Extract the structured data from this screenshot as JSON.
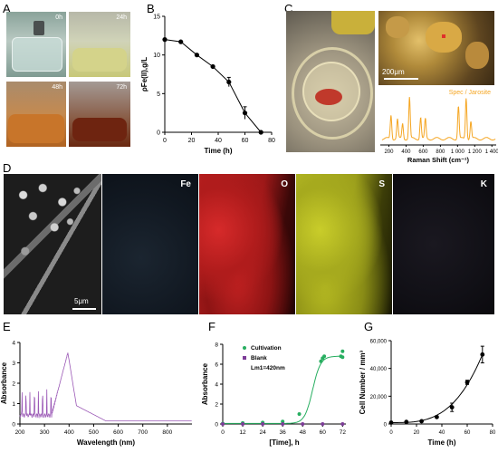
{
  "panels": {
    "A": "A",
    "B": "B",
    "C": "C",
    "D": "D",
    "E": "E",
    "F": "F",
    "G": "G"
  },
  "panelA": {
    "times": [
      "0h",
      "24h",
      "48h",
      "72h"
    ]
  },
  "panelC": {
    "scale_bar": "200μm",
    "spec_label": "Spec / Jarosite"
  },
  "panelD": {
    "channels": [
      "Fe",
      "O",
      "S",
      "K"
    ],
    "scale_bar": "5μm"
  },
  "chart_data": [
    {
      "panel": "B",
      "type": "line",
      "xlabel": "Time (h)",
      "ylabel": "ρFe(II),g/L",
      "xlim": [
        0,
        80
      ],
      "ylim": [
        0,
        15
      ],
      "xticks": [
        "0",
        "20",
        "40",
        "60",
        "80"
      ],
      "yticks": [
        "0",
        "5",
        "10",
        "15"
      ],
      "x": [
        0,
        12,
        24,
        36,
        48,
        60,
        72
      ],
      "y": [
        12.0,
        11.7,
        10.0,
        8.5,
        6.5,
        2.5,
        0.0
      ],
      "error": [
        0,
        0,
        0,
        0,
        0.6,
        0.8,
        0
      ],
      "color": "#000000"
    },
    {
      "panel": "C",
      "type": "line",
      "xlabel": "Raman Shift (cm⁻¹)",
      "xlim": [
        100,
        1450
      ],
      "xticks": [
        "200",
        "400",
        "600",
        "800",
        "1 000",
        "1 200",
        "1 400"
      ],
      "peaks": [
        {
          "x": 225,
          "h": 0.55
        },
        {
          "x": 300,
          "h": 0.45
        },
        {
          "x": 360,
          "h": 0.35
        },
        {
          "x": 440,
          "h": 0.95
        },
        {
          "x": 570,
          "h": 0.5
        },
        {
          "x": 625,
          "h": 0.45
        },
        {
          "x": 1010,
          "h": 0.75
        },
        {
          "x": 1100,
          "h": 0.95
        },
        {
          "x": 1155,
          "h": 0.4
        }
      ],
      "color": "#f5a623"
    },
    {
      "panel": "E",
      "type": "line",
      "xlabel": "Wavelength (nm)",
      "ylabel": "Absorbance",
      "xlim": [
        200,
        900
      ],
      "ylim": [
        0,
        4
      ],
      "xticks": [
        "200",
        "300",
        "400",
        "500",
        "600",
        "700",
        "800"
      ],
      "yticks": [
        "0",
        "1",
        "2",
        "3",
        "4"
      ],
      "color": "#9b59b6"
    },
    {
      "panel": "F",
      "type": "scatter",
      "xlabel": "[Time], h",
      "ylabel": "Absorbance",
      "xlim": [
        0,
        74
      ],
      "ylim": [
        0,
        8
      ],
      "xticks": [
        "0",
        "12",
        "24",
        "36",
        "48",
        "60",
        "72"
      ],
      "yticks": [
        "0",
        "2",
        "4",
        "6",
        "8"
      ],
      "annotation": "Lm1=420nm",
      "series": [
        {
          "name": "Cultivation",
          "color": "#27ae60",
          "x": [
            0,
            12,
            24,
            36,
            46,
            59,
            60,
            61,
            71,
            72,
            72
          ],
          "y": [
            0.05,
            0.1,
            0.15,
            0.25,
            1.0,
            6.3,
            6.6,
            6.8,
            6.8,
            7.3,
            6.7
          ]
        },
        {
          "name": "Blank",
          "color": "#7d3c98",
          "x": [
            0,
            12,
            24,
            36,
            48,
            60,
            72
          ],
          "y": [
            0,
            0,
            0,
            0,
            0,
            0,
            0
          ]
        }
      ]
    },
    {
      "panel": "G",
      "type": "line",
      "xlabel": "Time (h)",
      "ylabel": "Cell Number / mm³",
      "xlim": [
        0,
        80
      ],
      "ylim": [
        0,
        60000
      ],
      "xticks": [
        "0",
        "20",
        "40",
        "60",
        "80"
      ],
      "yticks": [
        "0",
        "20,000",
        "40,000",
        "60,000"
      ],
      "x": [
        0,
        12,
        24,
        36,
        48,
        60,
        72
      ],
      "y": [
        1000,
        1500,
        2000,
        5000,
        12000,
        30000,
        50000
      ],
      "error": [
        0,
        0,
        0,
        0,
        3000,
        1500,
        6000
      ],
      "color": "#000000"
    }
  ]
}
